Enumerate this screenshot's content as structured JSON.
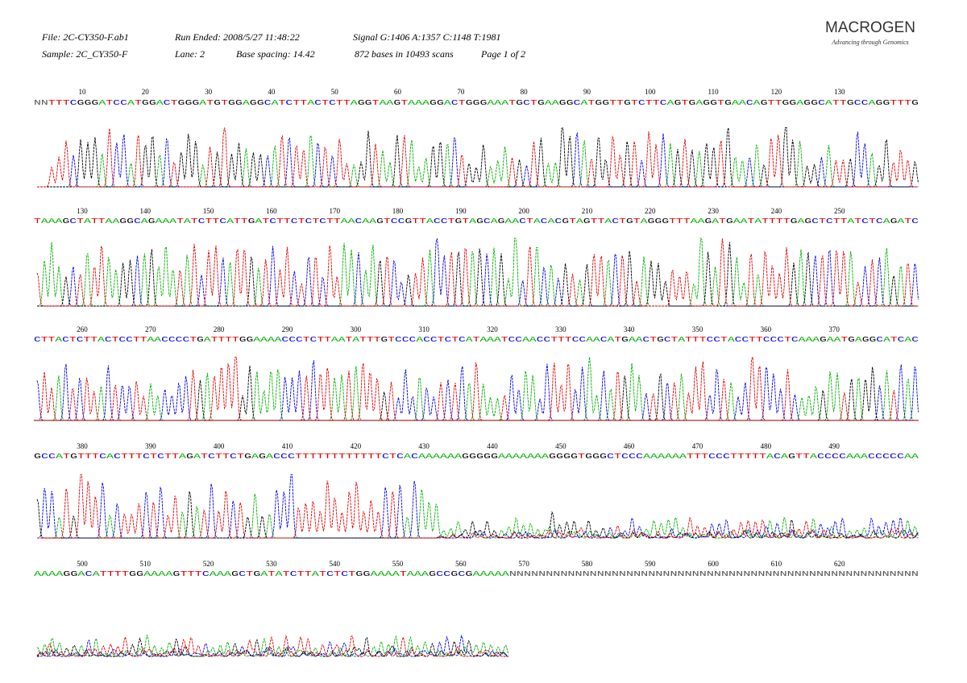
{
  "header": {
    "file": "File: 2C-CY350-F.ab1",
    "run_ended": "Run Ended: 2008/5/27 11:48:22",
    "signal": "Signal G:1406 A:1357 C:1148 T:1981",
    "sample": "Sample: 2C_CY350-F",
    "lane": "Lane: 2",
    "base_spacing": "Base spacing: 14.42",
    "bases_scans": "872 bases in 10493 scans",
    "page": "Page 1 of 2"
  },
  "logo": {
    "name": "MACROGEN",
    "tagline": "Advancing through Genomics"
  },
  "rows": [
    {
      "positions": [
        10,
        20,
        30,
        40,
        50,
        60,
        70,
        80,
        90,
        100,
        110,
        120,
        130
      ],
      "sequence": "NNTTTCGGGATCCATGGACTGGGATGTGGAGGCATCTTACTCTTAGGTAAGTAAAGGACTGGGAAATGCTGAAGGCATGGTTGTCTTCAGTGAGGTGAACAGTTGGAGGCATTGCCAGGTTTG"
    },
    {
      "positions": [
        130,
        140,
        150,
        160,
        170,
        180,
        190,
        200,
        210,
        220,
        230,
        240,
        250
      ],
      "sequence": "TAAAGCTATTAAGGCAGAAATATCTTCATTGATCTTCTCTCTTAACAAGTCCGTTACCTGTAGCAGAACTACACGTAGTTACTGTAGGGTTTAAGATGAATATTTTGAGCTCTTATCTCAGATC"
    },
    {
      "positions": [
        260,
        270,
        280,
        290,
        300,
        310,
        320,
        330,
        340,
        350,
        360,
        370
      ],
      "sequence": "CTTACTCTTACTCCTTAACCCCTGATTTTGGAAAACCCTCTTAATATTTGTCCCACCTCTCATAAATCCAACCTTTCCAACATGAACTGCTATTTCCTACCTTCCCTCAAAGAATGAGGCATCAC"
    },
    {
      "positions": [
        380,
        390,
        400,
        410,
        420,
        430,
        440,
        450,
        460,
        470,
        480,
        490
      ],
      "sequence": "GCCATGTTTCACTTTCTCTTAGATCTTCTGAGACCCTTTTTTTTTTTTCTCACAAAAAAGGGGGAAAAAAAGGGGTGGGCTCCCAAAAAATTTCCCTTTTTACAGTTACCCCAAACCCCCAA"
    },
    {
      "positions": [
        500,
        510,
        520,
        530,
        540,
        550,
        560,
        570,
        580,
        590,
        600,
        610,
        620
      ],
      "sequence": "AAAAGGACATTTTGGAAAAGTTTCAAAGCTGATATCTTATCTCTGGAAAATAAAGCCGCGAAAAANNNNNNNNNNNNNNNNNNNNNNNNNNNNNNNNNNNNNNNNNNNNNNNNNNNNNNNN"
    }
  ]
}
